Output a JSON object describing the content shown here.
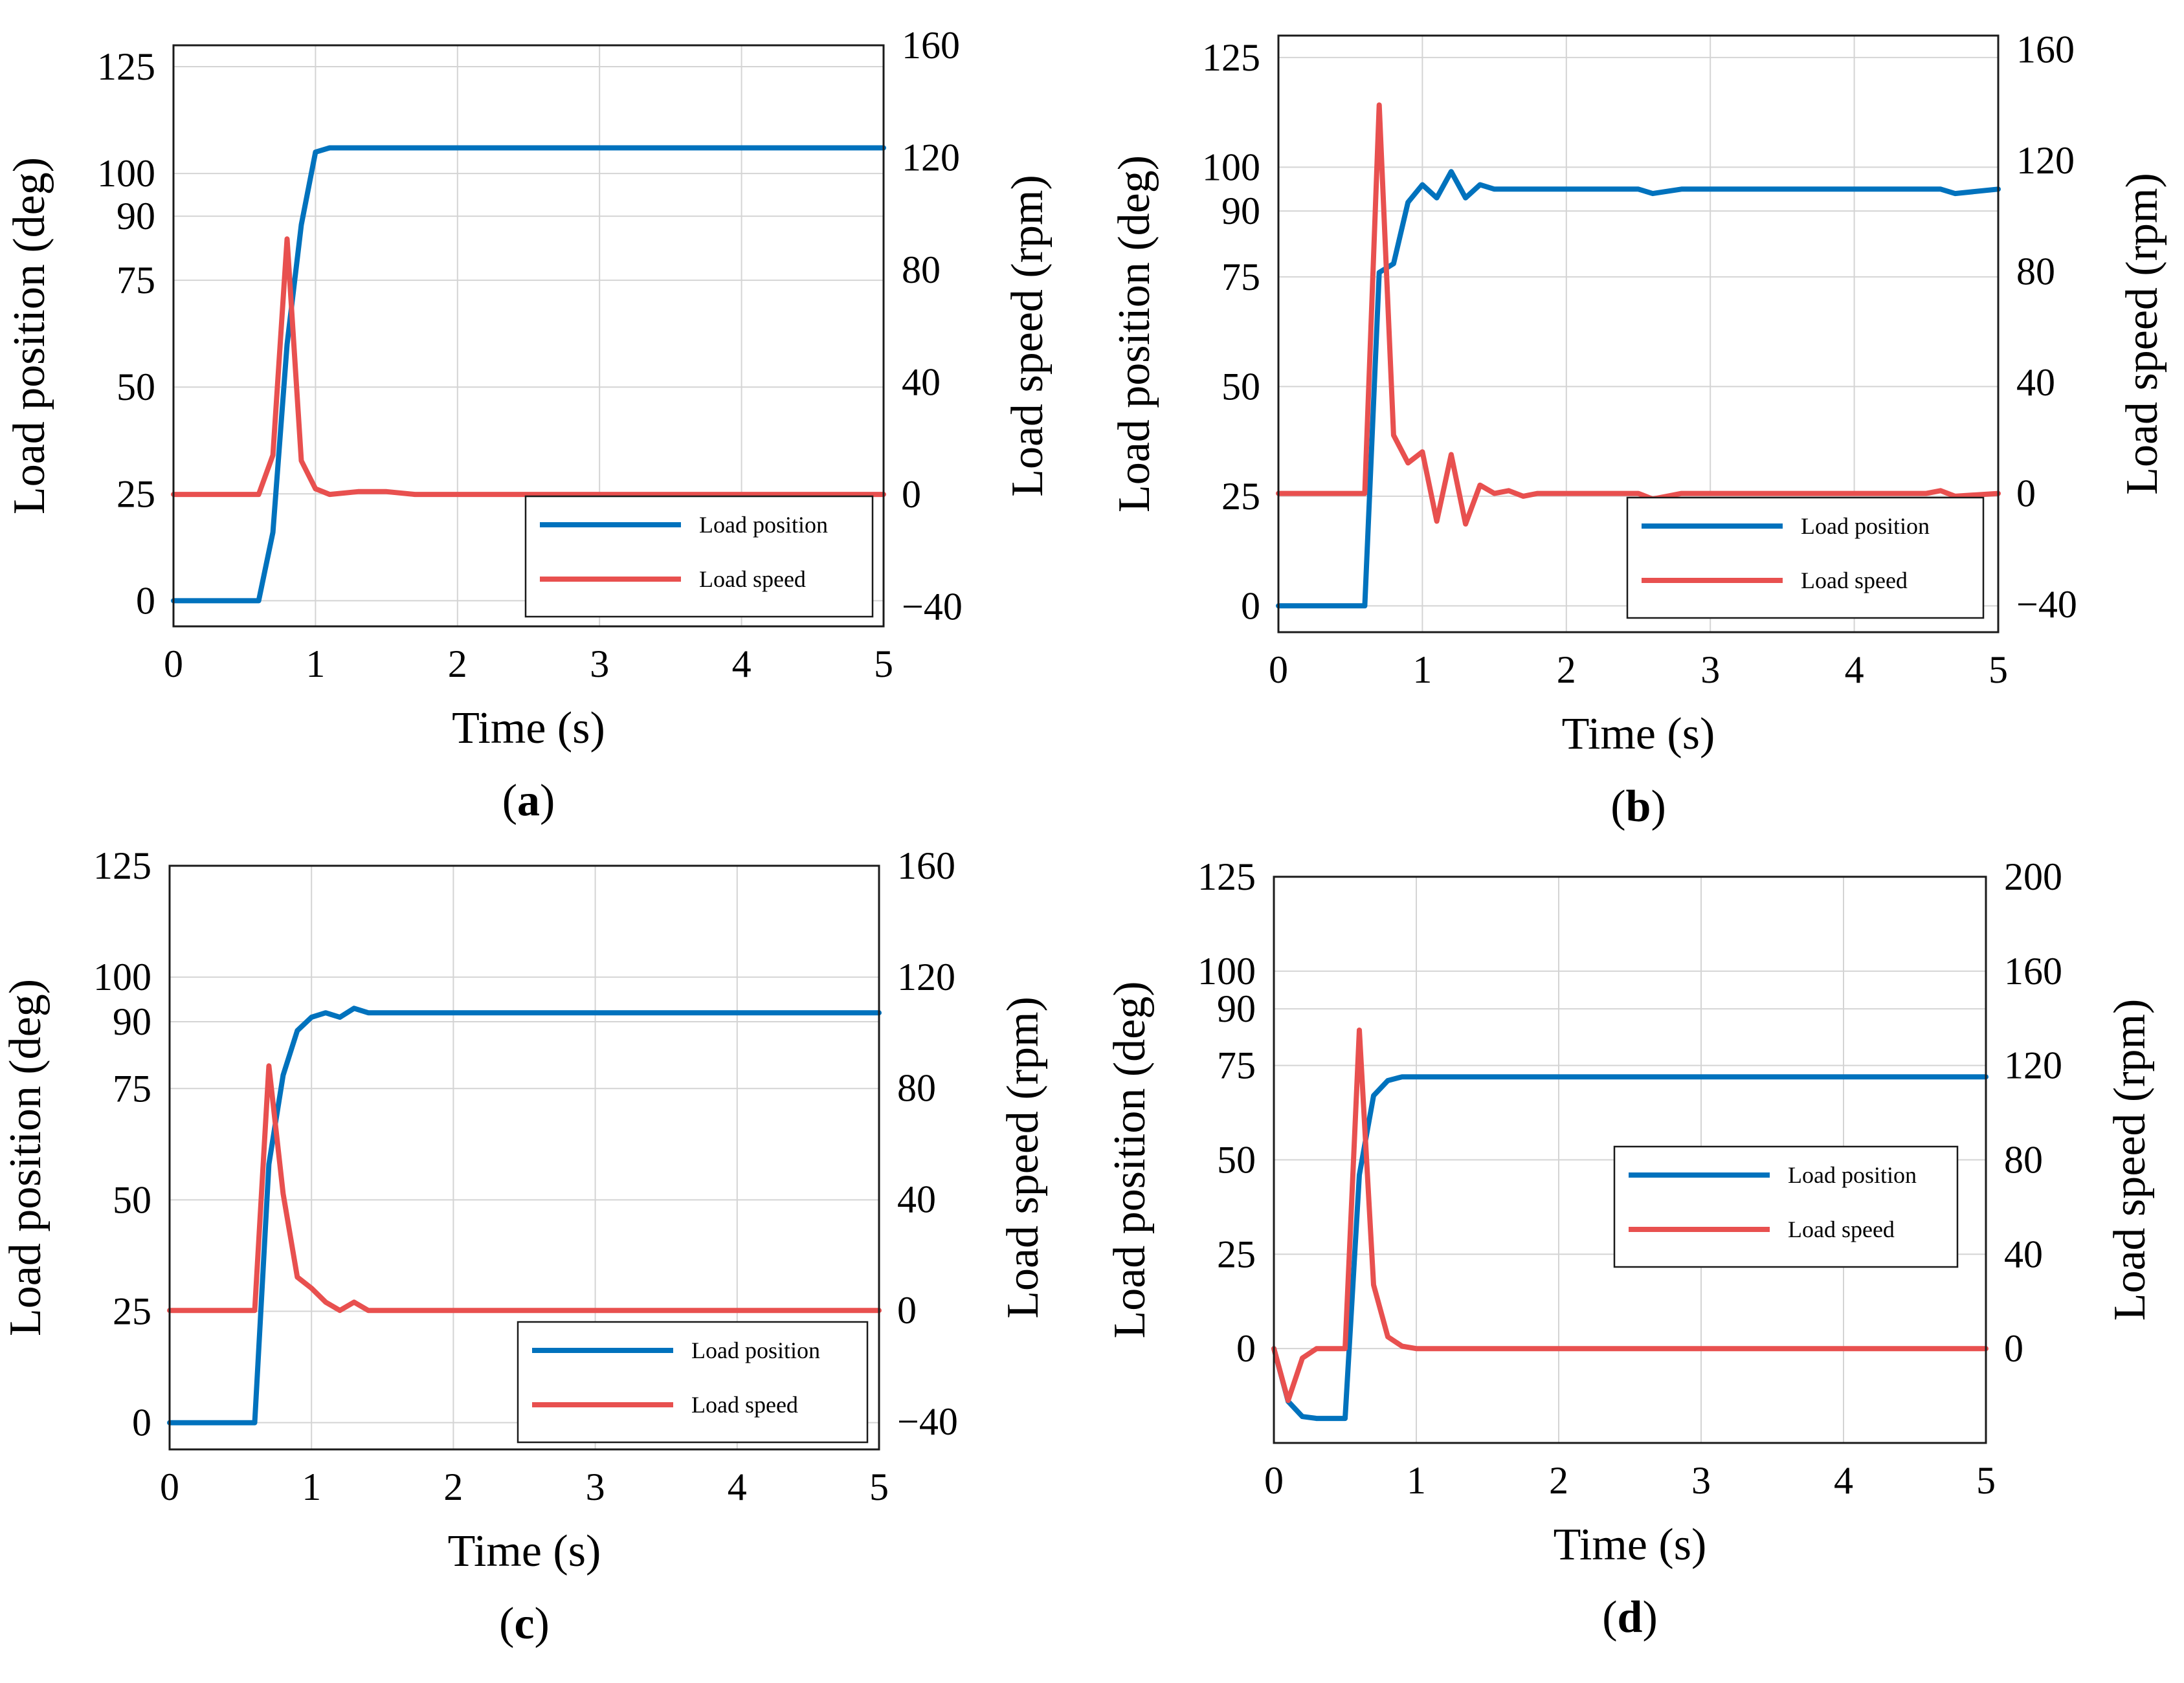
{
  "chart_data": [
    {
      "type": "line",
      "panel": "a",
      "caption_label": "a",
      "xlabel": "Time (s)",
      "ylabel_left": "Load position (deg)",
      "ylabel_right": "Load speed (rpm)",
      "xlim": [
        0,
        5
      ],
      "ylim_left": [
        -6,
        130
      ],
      "ylim_right": [
        -47,
        160
      ],
      "xticks": [
        "0",
        "1",
        "2",
        "3",
        "4",
        "5"
      ],
      "yticks_left": [
        "0",
        "25",
        "50",
        "75",
        "90",
        "100",
        "125"
      ],
      "yticks_right": [
        "−40",
        "0",
        "40",
        "80",
        "120",
        "160"
      ],
      "legend_position": "bottom-right",
      "series": [
        {
          "name": "Load position",
          "axis": "left",
          "color": "#0072BD",
          "x": [
            0,
            0.6,
            0.7,
            0.8,
            0.9,
            1.0,
            1.1,
            1.5,
            2,
            2.5,
            3,
            3.5,
            4,
            4.5,
            5
          ],
          "y": [
            0,
            0,
            16,
            60,
            88,
            105,
            106,
            106,
            106,
            106,
            106,
            106,
            106,
            106,
            106
          ]
        },
        {
          "name": "Load speed",
          "axis": "right",
          "color": "#E8504F",
          "x": [
            0,
            0.6,
            0.7,
            0.8,
            0.9,
            1.0,
            1.1,
            1.3,
            1.5,
            1.7,
            2,
            2.5,
            3,
            3.5,
            4,
            4.5,
            5
          ],
          "y": [
            0,
            0,
            14,
            91,
            12,
            2,
            0,
            1,
            1,
            0,
            0,
            0,
            0,
            0,
            0,
            0,
            0
          ]
        }
      ]
    },
    {
      "type": "line",
      "panel": "b",
      "caption_label": "b",
      "xlabel": "Time (s)",
      "ylabel_left": "Load position (deg)",
      "ylabel_right": "Load speed (rpm)",
      "xlim": [
        0,
        5
      ],
      "ylim_left": [
        -6,
        130
      ],
      "ylim_right": [
        -50,
        165
      ],
      "xticks": [
        "0",
        "1",
        "2",
        "3",
        "4",
        "5"
      ],
      "yticks_left": [
        "0",
        "25",
        "50",
        "75",
        "90",
        "100",
        "125"
      ],
      "yticks_right": [
        "−40",
        "0",
        "40",
        "80",
        "120",
        "160"
      ],
      "legend_position": "bottom-right",
      "series": [
        {
          "name": "Load position",
          "axis": "left",
          "color": "#0072BD",
          "x": [
            0,
            0.6,
            0.7,
            0.8,
            0.9,
            1.0,
            1.1,
            1.2,
            1.3,
            1.4,
            1.5,
            1.7,
            2,
            2.5,
            2.6,
            2.8,
            3,
            3.5,
            4,
            4.5,
            4.6,
            4.7,
            5
          ],
          "y": [
            0,
            0,
            76,
            78,
            92,
            96,
            93,
            99,
            93,
            96,
            95,
            95,
            95,
            95,
            94,
            95,
            95,
            95,
            95,
            95,
            95,
            94,
            95
          ]
        },
        {
          "name": "Load speed",
          "axis": "right",
          "color": "#E8504F",
          "x": [
            0,
            0.6,
            0.7,
            0.8,
            0.9,
            1.0,
            1.1,
            1.2,
            1.3,
            1.4,
            1.5,
            1.6,
            1.7,
            1.8,
            2,
            2.5,
            2.6,
            2.8,
            3,
            3.5,
            4,
            4.5,
            4.6,
            4.7,
            5
          ],
          "y": [
            0,
            0,
            140,
            21,
            11,
            15,
            -10,
            14,
            -11,
            3,
            0,
            1,
            -1,
            0,
            0,
            0,
            -2,
            0,
            0,
            0,
            0,
            0,
            1,
            -1,
            0
          ]
        }
      ]
    },
    {
      "type": "line",
      "panel": "c",
      "caption_label": "c",
      "xlabel": "Time (s)",
      "ylabel_left": "Load position (deg)",
      "ylabel_right": "Load speed (rpm)",
      "xlim": [
        0,
        5
      ],
      "ylim_left": [
        -6,
        125
      ],
      "ylim_right": [
        -50,
        160
      ],
      "xticks": [
        "0",
        "1",
        "2",
        "3",
        "4",
        "5"
      ],
      "yticks_left": [
        "0",
        "25",
        "50",
        "75",
        "90",
        "100",
        "125"
      ],
      "yticks_right": [
        "−40",
        "0",
        "40",
        "80",
        "120",
        "160"
      ],
      "legend_position": "bottom-right",
      "series": [
        {
          "name": "Load position",
          "axis": "left",
          "color": "#0072BD",
          "x": [
            0,
            0.6,
            0.7,
            0.8,
            0.9,
            1.0,
            1.1,
            1.2,
            1.3,
            1.4,
            1.5,
            2,
            2.5,
            3,
            3.5,
            4,
            4.5,
            5
          ],
          "y": [
            0,
            0,
            58,
            78,
            88,
            91,
            92,
            91,
            93,
            92,
            92,
            92,
            92,
            92,
            92,
            92,
            92,
            92
          ]
        },
        {
          "name": "Load speed",
          "axis": "right",
          "color": "#E8504F",
          "x": [
            0,
            0.6,
            0.7,
            0.8,
            0.9,
            1.0,
            1.1,
            1.2,
            1.3,
            1.4,
            1.5,
            2,
            2.5,
            3,
            3.5,
            4,
            4.5,
            5
          ],
          "y": [
            0,
            0,
            88,
            42,
            12,
            8,
            3,
            0,
            3,
            0,
            0,
            0,
            0,
            0,
            0,
            0,
            0,
            0
          ]
        }
      ]
    },
    {
      "type": "line",
      "panel": "d",
      "caption_label": "d",
      "xlabel": "Time (s)",
      "ylabel_left": "Load position (deg)",
      "ylabel_right": "Load speed (rpm)",
      "xlim": [
        0,
        5
      ],
      "ylim_left": [
        -25,
        125
      ],
      "ylim_right": [
        -40,
        200
      ],
      "xticks": [
        "0",
        "1",
        "2",
        "3",
        "4",
        "5"
      ],
      "yticks_left": [
        "0",
        "25",
        "50",
        "75",
        "90",
        "100",
        "125"
      ],
      "yticks_right": [
        "0",
        "40",
        "80",
        "120",
        "160",
        "200"
      ],
      "legend_position": "center-right",
      "series": [
        {
          "name": "Load position",
          "axis": "left",
          "color": "#0072BD",
          "x": [
            0,
            0.1,
            0.2,
            0.3,
            0.4,
            0.5,
            0.6,
            0.7,
            0.8,
            0.9,
            1.0,
            1.5,
            2,
            2.5,
            3,
            3.5,
            4,
            4.5,
            5
          ],
          "y": [
            0,
            -14,
            -18,
            -18.5,
            -18.5,
            -18.5,
            46,
            67,
            71,
            72,
            72,
            72,
            72,
            72,
            72,
            72,
            72,
            72,
            72
          ]
        },
        {
          "name": "Load speed",
          "axis": "right",
          "color": "#E8504F",
          "x": [
            0,
            0.1,
            0.2,
            0.3,
            0.4,
            0.5,
            0.6,
            0.7,
            0.8,
            0.9,
            1.0,
            1.5,
            2,
            2.5,
            3,
            3.5,
            4,
            4.5,
            5
          ],
          "y": [
            0,
            -22,
            -4,
            0,
            0,
            0,
            135,
            27,
            5,
            1,
            0,
            0,
            0,
            0,
            0,
            0,
            0,
            0,
            0
          ]
        }
      ]
    }
  ]
}
